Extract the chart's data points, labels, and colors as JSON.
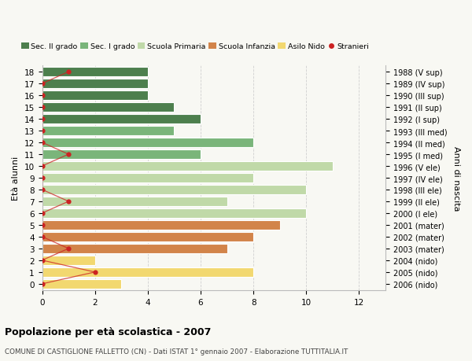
{
  "ages": [
    18,
    17,
    16,
    15,
    14,
    13,
    12,
    11,
    10,
    9,
    8,
    7,
    6,
    5,
    4,
    3,
    2,
    1,
    0
  ],
  "years": [
    "1988 (V sup)",
    "1989 (IV sup)",
    "1990 (III sup)",
    "1991 (II sup)",
    "1992 (I sup)",
    "1993 (III med)",
    "1994 (II med)",
    "1995 (I med)",
    "1996 (V ele)",
    "1997 (IV ele)",
    "1998 (III ele)",
    "1999 (II ele)",
    "2000 (I ele)",
    "2001 (mater)",
    "2002 (mater)",
    "2003 (mater)",
    "2004 (nido)",
    "2005 (nido)",
    "2006 (nido)"
  ],
  "bar_values": [
    4,
    4,
    4,
    5,
    6,
    5,
    8,
    6,
    11,
    8,
    10,
    7,
    10,
    9,
    8,
    7,
    2,
    8,
    3
  ],
  "bar_colors": [
    "#4d7f4d",
    "#4d7f4d",
    "#4d7f4d",
    "#4d7f4d",
    "#4d7f4d",
    "#7ab57a",
    "#7ab57a",
    "#7ab57a",
    "#c0d9a8",
    "#c0d9a8",
    "#c0d9a8",
    "#c0d9a8",
    "#c0d9a8",
    "#d2844a",
    "#d2844a",
    "#d2844a",
    "#f2d870",
    "#f2d870",
    "#f2d870"
  ],
  "stranieri_x": [
    1,
    0,
    0,
    0,
    0,
    0,
    0,
    1,
    0,
    0,
    0,
    1,
    0,
    0,
    0,
    1,
    0,
    2,
    0
  ],
  "title": "Popolazione per età scolastica - 2007",
  "subtitle": "COMUNE DI CASTIGLIONE FALLETTO (CN) - Dati ISTAT 1° gennaio 2007 - Elaborazione TUTTITALIA.IT",
  "ylabel": "Età alunni",
  "right_label": "Anni di nascita",
  "xlabel_vals": [
    0,
    2,
    4,
    6,
    8,
    10,
    12
  ],
  "xlim": [
    0,
    13
  ],
  "ylim_bottom": -0.55,
  "ylim_top": 18.55,
  "legend_labels": [
    "Sec. II grado",
    "Sec. I grado",
    "Scuola Primaria",
    "Scuola Infanzia",
    "Asilo Nido",
    "Stranieri"
  ],
  "legend_colors": [
    "#4d7f4d",
    "#7ab57a",
    "#c0d9a8",
    "#d2844a",
    "#f2d870",
    "#cc2222"
  ],
  "color_stranieri": "#cc2222",
  "bg_color": "#f8f8f3",
  "plot_bg": "#f8f8f3",
  "bar_height": 0.78,
  "grid_color": "#d0d0d0",
  "bar_edgecolor": "white"
}
